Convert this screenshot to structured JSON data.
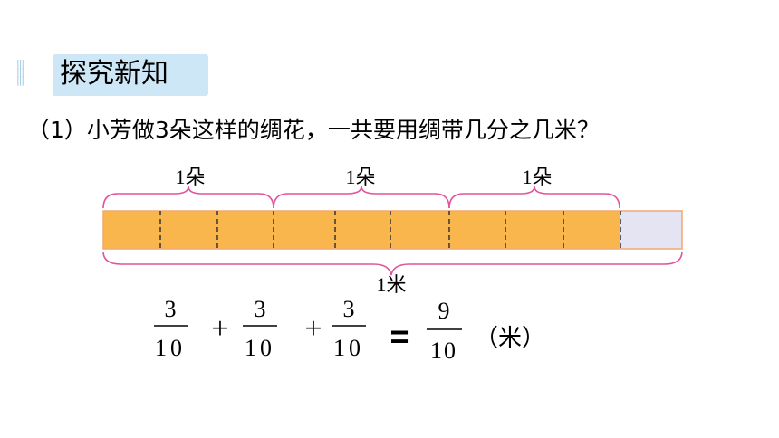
{
  "header": {
    "section_title": "探究新知"
  },
  "question": {
    "text": "（1）小芳做3朵这样的绸花，一共要用绸带几分之几米？"
  },
  "diagram": {
    "segment_labels": [
      "1朵",
      "1朵",
      "1朵"
    ],
    "total_label": "1米",
    "total_parts": 10,
    "shaded_parts": 9,
    "parts_per_flower": 3,
    "colors": {
      "shaded": "#f9b64d",
      "unshaded": "#e4e4f2",
      "border": "#f2a874",
      "brace": "#e0559b"
    }
  },
  "equation": {
    "terms": [
      {
        "numerator": "3",
        "denominator": "10"
      },
      {
        "numerator": "3",
        "denominator": "10"
      },
      {
        "numerator": "3",
        "denominator": "10"
      }
    ],
    "plus": "+",
    "equals": "=",
    "result": {
      "numerator": "9",
      "denominator": "10"
    },
    "unit": "（米）"
  }
}
